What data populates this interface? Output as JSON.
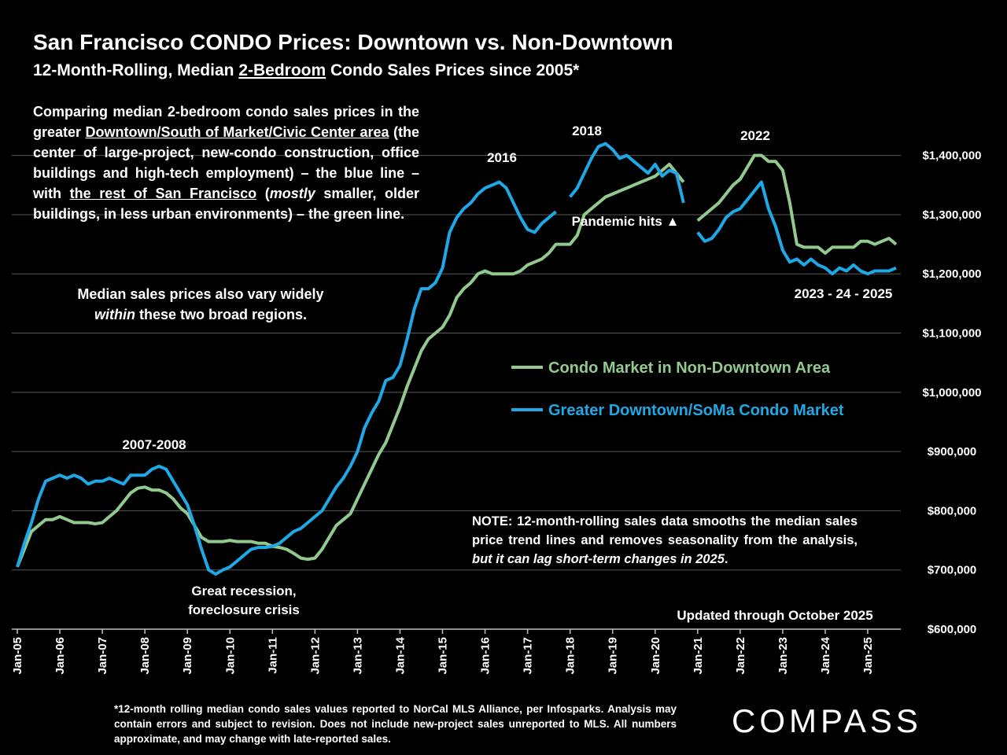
{
  "chart_data": {
    "type": "line",
    "title": "San Francisco CONDO Prices: Downtown vs. Non-Downtown",
    "subtitle": [
      "12-Month-Rolling, Median ",
      "2-Bedroom",
      " Condo Sales Prices since 2005*"
    ],
    "intro": [
      "Comparing median 2-bedroom condo sales prices in the greater ",
      "Downtown/South of Market/Civic Center area",
      " (the center of large-project, new-condo construction, office buildings and high-tech employment) – the blue line – with ",
      "the rest of San Francisco",
      " (",
      "mostly",
      " smaller, older buildings, in less urban environments) – the green line."
    ],
    "regions_note": [
      "Median sales prices also vary widely",
      "within",
      " these two broad regions."
    ],
    "note": [
      "NOTE: 12-month-rolling sales data smooths the median sales price trend lines and removes seasonality from the analysis, ",
      "but it can lag short-term changes in 2025",
      "."
    ],
    "annotations": [
      "2007-2008",
      "2016",
      "2018",
      "2022",
      "Pandemic hits ▲",
      "2023 - 24 - 2025"
    ],
    "recession_label": [
      "Great recession,",
      "foreclosure crisis"
    ],
    "updated": "Updated through October  2025",
    "footnote": "*12-month rolling median condo sales values reported to NorCal MLS Alliance, per Infosparks. Analysis may contain errors and subject to revision. Does not include new-project sales unreported to MLS. All numbers approximate, and may change with late-reported sales.",
    "brand": "COMPASS",
    "categories": [
      "Jan-05",
      null,
      null,
      null,
      null,
      null,
      "Jan-06",
      null,
      null,
      null,
      null,
      null,
      "Jan-07",
      null,
      null,
      null,
      null,
      null,
      "Jan-08",
      null,
      null,
      null,
      null,
      null,
      "Jan-09",
      null,
      null,
      null,
      null,
      null,
      "Jan-10",
      null,
      null,
      null,
      null,
      null,
      "Jan-11",
      null,
      null,
      null,
      null,
      null,
      "Jan-12",
      null,
      null,
      null,
      null,
      null,
      "Jan-13",
      null,
      null,
      null,
      null,
      null,
      "Jan-14",
      null,
      null,
      null,
      null,
      null,
      "Jan-15",
      null,
      null,
      null,
      null,
      null,
      "Jan-16",
      null,
      null,
      null,
      null,
      null,
      "Jan-17",
      null,
      null,
      null,
      null,
      null,
      "Jan-18",
      null,
      null,
      null,
      null,
      null,
      "Jan-19",
      null,
      null,
      null,
      null,
      null,
      "Jan-20",
      null,
      null,
      null,
      null,
      null,
      "Jan-21",
      null,
      null,
      null,
      null,
      null,
      "Jan-22",
      null,
      null,
      null,
      null,
      null,
      "Jan-23",
      null,
      null,
      null,
      null,
      null,
      "Jan-24",
      null,
      null,
      null,
      null,
      null,
      "Jan-25",
      null,
      null,
      null,
      null
    ],
    "series": [
      {
        "name": "Condo Market in Non-Downtown Area",
        "color": "#92c98e",
        "values": [
          705000,
          735000,
          765000,
          775000,
          785000,
          785000,
          790000,
          785000,
          780000,
          780000,
          780000,
          778000,
          780000,
          790000,
          800000,
          815000,
          830000,
          838000,
          840000,
          835000,
          835000,
          830000,
          820000,
          805000,
          795000,
          775000,
          755000,
          748000,
          748000,
          748000,
          750000,
          748000,
          748000,
          748000,
          745000,
          745000,
          740000,
          738000,
          735000,
          728000,
          720000,
          718000,
          720000,
          735000,
          755000,
          775000,
          785000,
          795000,
          820000,
          845000,
          870000,
          895000,
          915000,
          945000,
          975000,
          1010000,
          1040000,
          1070000,
          1090000,
          1100000,
          1110000,
          1130000,
          1160000,
          1175000,
          1185000,
          1200000,
          1205000,
          1200000,
          1200000,
          1200000,
          1200000,
          1205000,
          1215000,
          1220000,
          1225000,
          1235000,
          1250000,
          1250000,
          1250000,
          1265000,
          1300000,
          1310000,
          1320000,
          1330000,
          1335000,
          1340000,
          1345000,
          1350000,
          1355000,
          1360000,
          1365000,
          1375000,
          1385000,
          1370000,
          1355000,
          null,
          1290000,
          1300000,
          1310000,
          1320000,
          1335000,
          1350000,
          1360000,
          1380000,
          1400000,
          1400000,
          1390000,
          1390000,
          1375000,
          1320000,
          1250000,
          1245000,
          1245000,
          1245000,
          1235000,
          1245000,
          1245000,
          1245000,
          1245000,
          1255000,
          1255000,
          1250000,
          1255000,
          1260000,
          1250000
        ]
      },
      {
        "name": "Greater Downtown/SoMa Condo Market",
        "color": "#1ea8e6",
        "values": [
          705000,
          745000,
          780000,
          820000,
          850000,
          855000,
          860000,
          855000,
          860000,
          855000,
          845000,
          850000,
          850000,
          855000,
          850000,
          845000,
          860000,
          860000,
          860000,
          870000,
          875000,
          870000,
          850000,
          830000,
          810000,
          775000,
          735000,
          700000,
          693000,
          700000,
          705000,
          715000,
          725000,
          735000,
          738000,
          738000,
          740000,
          745000,
          755000,
          765000,
          770000,
          780000,
          790000,
          800000,
          820000,
          840000,
          855000,
          875000,
          900000,
          940000,
          965000,
          985000,
          1020000,
          1025000,
          1045000,
          1090000,
          1140000,
          1175000,
          1175000,
          1185000,
          1210000,
          1270000,
          1295000,
          1310000,
          1320000,
          1335000,
          1345000,
          1350000,
          1355000,
          1345000,
          1320000,
          1295000,
          1275000,
          1270000,
          1285000,
          1295000,
          1305000,
          null,
          1330000,
          1345000,
          1370000,
          1395000,
          1415000,
          1420000,
          1410000,
          1395000,
          1400000,
          1390000,
          1380000,
          1370000,
          1385000,
          1365000,
          1375000,
          1370000,
          1320000,
          null,
          1270000,
          1255000,
          1260000,
          1275000,
          1295000,
          1305000,
          1310000,
          1325000,
          1340000,
          1355000,
          1310000,
          1280000,
          1240000,
          1220000,
          1225000,
          1215000,
          1225000,
          1215000,
          1210000,
          1200000,
          1210000,
          1205000,
          1215000,
          1205000,
          1200000,
          1205000,
          1205000,
          1205000,
          1210000
        ]
      }
    ],
    "ylim": [
      600000,
      1450000
    ],
    "yticks": [
      {
        "value": 600000,
        "label": "$600,000"
      },
      {
        "value": 700000,
        "label": "$700,000"
      },
      {
        "value": 800000,
        "label": "$800,000"
      },
      {
        "value": 900000,
        "label": "$900,000"
      },
      {
        "value": 1000000,
        "label": "$1,000,000"
      },
      {
        "value": 1100000,
        "label": "$1,100,000"
      },
      {
        "value": 1200000,
        "label": "$1,200,000"
      },
      {
        "value": 1300000,
        "label": "$1,300,000"
      },
      {
        "value": 1400000,
        "label": "$1,400,000"
      }
    ],
    "grid": true,
    "y_axis_side": "right"
  }
}
